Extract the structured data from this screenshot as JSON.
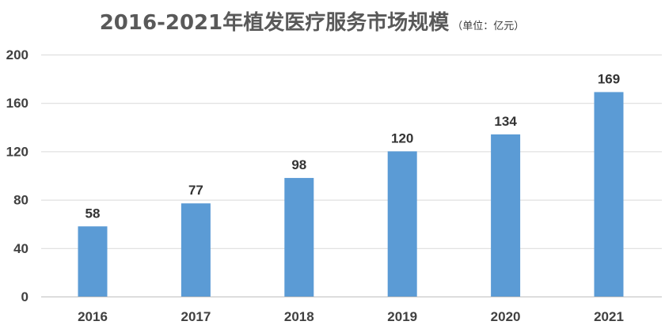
{
  "chart_data": {
    "type": "bar",
    "title": "2016-2021年植发医疗服务市场规模",
    "unit": "（单位：亿元）",
    "categories": [
      "2016",
      "2017",
      "2018",
      "2019",
      "2020",
      "2021"
    ],
    "values": [
      58,
      77,
      98,
      120,
      134,
      169
    ],
    "ylim": [
      0,
      200
    ],
    "yticks": [
      0,
      40,
      80,
      120,
      160,
      200
    ],
    "xlabel": "",
    "ylabel": "",
    "grid": true,
    "legend": "none",
    "bar_color": "#5b9bd5"
  }
}
